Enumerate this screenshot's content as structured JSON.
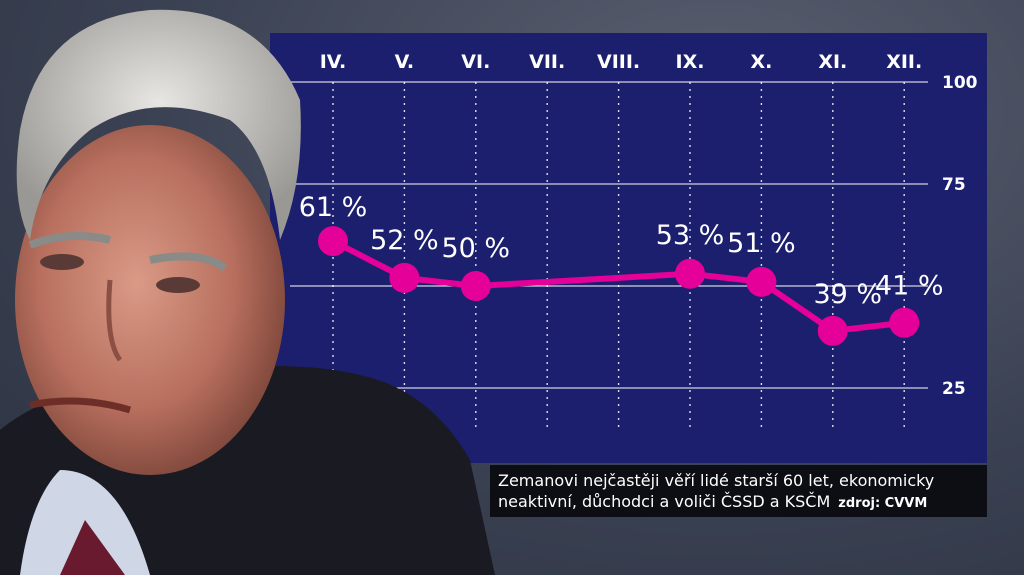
{
  "chart_data": {
    "type": "line",
    "categories": [
      "IV.",
      "V.",
      "VI.",
      "VII.",
      "VIII.",
      "IX.",
      "X.",
      "XI.",
      "XII."
    ],
    "x": [
      "IV.",
      "V.",
      "VI.",
      "IX.",
      "X.",
      "XI.",
      "XII."
    ],
    "values": [
      61,
      52,
      50,
      53,
      51,
      39,
      41
    ],
    "data_labels": [
      "61 %",
      "52 %",
      "50 %",
      "53 %",
      "51 %",
      "39 %",
      "41 %"
    ],
    "yticks": [
      "100",
      "75",
      "25"
    ],
    "ylim": [
      25,
      100
    ],
    "grid": true,
    "line_color": "#e5009a",
    "panel_color": "#1c1f6e"
  },
  "caption": {
    "line1": "Zemanovi nejčastěji věří lidé starší 60 let, ekonomicky",
    "line2": "neaktivní, důchodci a voliči ČSSD a KSČM",
    "source": "zdroj: CVVM"
  }
}
